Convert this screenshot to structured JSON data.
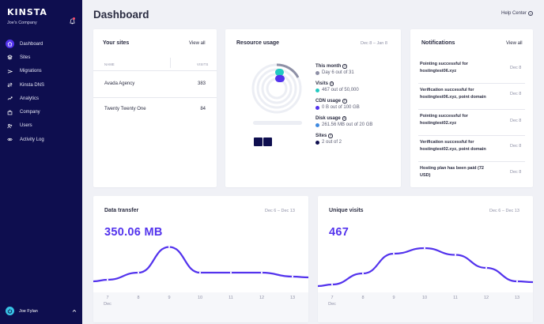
{
  "app": {
    "brand": "KINSTA",
    "company": "Joe's Company",
    "colors": {
      "sidebar": "#0e0e4f",
      "accent": "#5333ed",
      "teal": "#22c9c1",
      "blue": "#3f8ae0",
      "navy": "#0e0e4f"
    }
  },
  "sidebar": {
    "items": [
      {
        "label": "Dashboard",
        "icon": "home-icon",
        "active": true
      },
      {
        "label": "Sites",
        "icon": "sites-icon",
        "active": false
      },
      {
        "label": "Migrations",
        "icon": "migrations-icon",
        "active": false
      },
      {
        "label": "Kinsta DNS",
        "icon": "dns-icon",
        "active": false
      },
      {
        "label": "Analytics",
        "icon": "analytics-icon",
        "active": false
      },
      {
        "label": "Company",
        "icon": "company-icon",
        "active": false
      },
      {
        "label": "Users",
        "icon": "users-icon",
        "active": false
      },
      {
        "label": "Activity Log",
        "icon": "eye-icon",
        "active": false
      }
    ],
    "user": {
      "name": "Joe Fylan"
    }
  },
  "header": {
    "title": "Dashboard",
    "help": "Help Center"
  },
  "sites": {
    "title": "Your sites",
    "view_all": "View all",
    "col_name": "NAME",
    "col_visits": "VISITS",
    "rows": [
      {
        "name": "Avada Agency",
        "visits": "383"
      },
      {
        "name": "Twenty Twenty One",
        "visits": "84"
      }
    ]
  },
  "resources": {
    "title": "Resource usage",
    "date": "Dec 8 – Jan 8",
    "items": [
      {
        "label": "This month",
        "value": "Day 6 out of 31",
        "color": "#8e90a6",
        "fraction": 0.19
      },
      {
        "label": "Visits",
        "value": "467 out of 50,000",
        "color": "#22c9c1",
        "fraction": 0.0093
      },
      {
        "label": "CDN usage",
        "value": "0 B out of 100 GB",
        "color": "#5333ed",
        "fraction": 0
      },
      {
        "label": "Disk usage",
        "value": "261.56 MB out of 20 GB",
        "color": "#3f8ae0",
        "fraction": 0.0128
      },
      {
        "label": "Sites",
        "value": "2 out of 2",
        "color": "#0e0e4f",
        "fraction": 1
      }
    ]
  },
  "notifications": {
    "title": "Notifications",
    "view_all": "View all",
    "items": [
      {
        "line1": "Pointing successful for",
        "line2": "hostingtest06.xyz",
        "date": "Dec 8"
      },
      {
        "line1": "Verification successful for",
        "line2": "hostingtest06.xyz, point domain",
        "date": "Dec 8"
      },
      {
        "line1": "Pointing successful for",
        "line2": "hostingtest02.xyz",
        "date": "Dec 8"
      },
      {
        "line1": "Verification successful for",
        "line2": "hostingtest02.xyz, point domain",
        "date": "Dec 8"
      },
      {
        "line1": "Hosting plan has been paid (72",
        "line2": "USD)",
        "date": "Dec 8"
      }
    ]
  },
  "transfer": {
    "title": "Data transfer",
    "date": "Dec 6 – Dec 13",
    "total": "350.06 MB"
  },
  "visits": {
    "title": "Unique visits",
    "date": "Dec 6 – Dec 13",
    "total": "467"
  },
  "chart_data": [
    {
      "type": "area",
      "title": "Data transfer",
      "x": [
        "7",
        "8",
        "9",
        "10",
        "11",
        "12",
        "13"
      ],
      "x_sub": "Dec",
      "values": [
        0.12,
        0.3,
        0.95,
        0.3,
        0.3,
        0.3,
        0.2
      ]
    },
    {
      "type": "area",
      "title": "Unique visits",
      "x": [
        "7",
        "8",
        "9",
        "10",
        "11",
        "12",
        "13"
      ],
      "x_sub": "Dec",
      "values": [
        0.0,
        0.28,
        0.78,
        0.92,
        0.75,
        0.42,
        0.08
      ]
    }
  ]
}
